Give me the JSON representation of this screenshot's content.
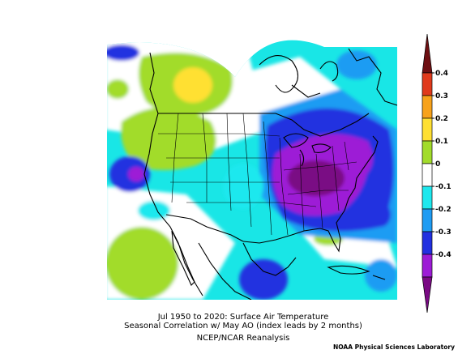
{
  "title_line1": "Jul 1950 to 2020: Surface Air Temperature",
  "title_line2": "Seasonal Correlation w/ May AO (index leads by 2 months)",
  "subtitle": "NCEP/NCAR Reanalysis",
  "credit": "NOAA Physical Sciences Laboratory",
  "colorbar": {
    "levels": [
      {
        "label": "0.4",
        "color": "#7a0a0a"
      },
      {
        "label": "0.3",
        "color": "#e8491b"
      },
      {
        "label": "0.2",
        "color": "#f59a16"
      },
      {
        "label": "0.1",
        "color": "#ffd21f"
      },
      {
        "label": "0",
        "color": "#c8e63a"
      },
      {
        "label": "-0.1",
        "color": "#8fd12b"
      },
      {
        "label": "-0.2",
        "color": "#ffffff"
      },
      {
        "label": "-0.3",
        "color": "#19e6e6"
      },
      {
        "label": "-0.4",
        "color": "#22a6f0"
      }
    ],
    "bands": [
      "#6e0f12",
      "#e03a1c",
      "#f7a21b",
      "#ffe033",
      "#a2dc2b",
      "#ffffff",
      "#1ee8ee",
      "#1f9cf3",
      "#2230e0",
      "#9d1cd6",
      "#7a0a84"
    ]
  }
}
